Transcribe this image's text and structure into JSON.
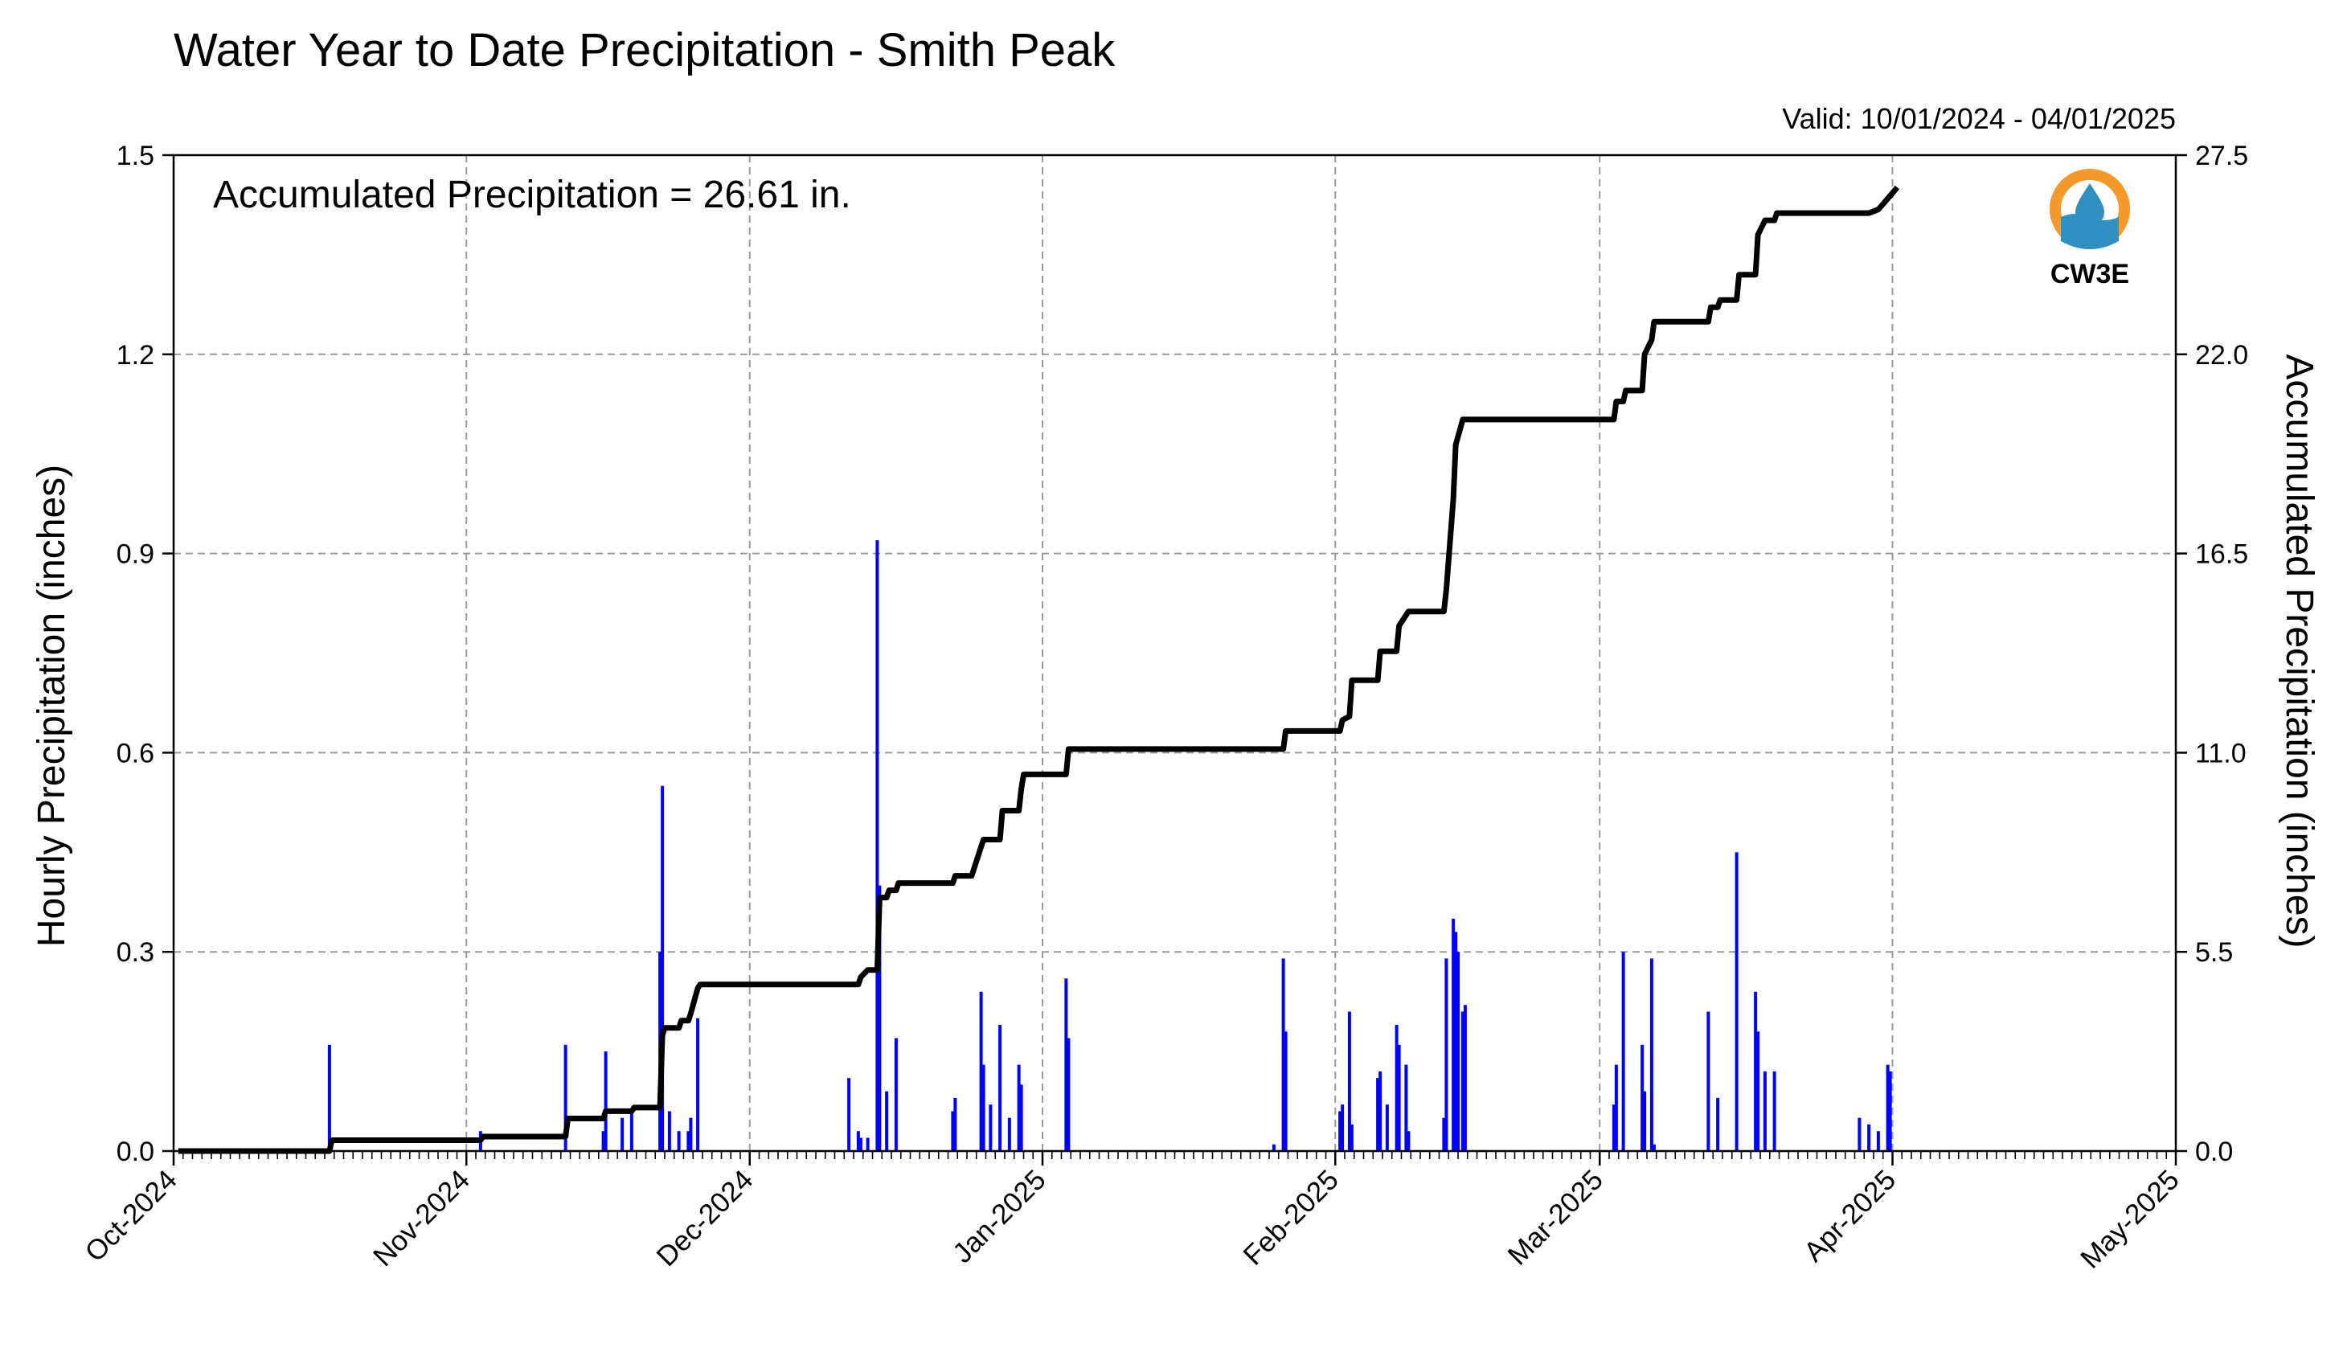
{
  "chart_data": {
    "type": "bar+line",
    "title": "Water Year to Date Precipitation - Smith Peak",
    "valid_range": "Valid: 10/01/2024 - 04/01/2025",
    "annotation": "Accumulated Precipitation = 26.61 in.",
    "logo_text": "CW3E",
    "ylabel_left": "Hourly Precipitation (inches)",
    "ylabel_right": "Accumulated Precipitation (inches)",
    "ylim_left": [
      0,
      1.5
    ],
    "ylim_right": [
      0,
      27.5
    ],
    "yticks_left": [
      "0.0",
      "0.3",
      "0.6",
      "0.9",
      "1.2",
      "1.5"
    ],
    "yticks_right": [
      "0.0",
      "5.5",
      "11.0",
      "16.5",
      "22.0",
      "27.5"
    ],
    "xlim": [
      "2024-10-01",
      "2025-05-01"
    ],
    "xticks": [
      "Oct-2024",
      "Nov-2024",
      "Dec-2024",
      "Jan-2025",
      "Feb-2025",
      "Mar-2025",
      "Apr-2025",
      "May-2025"
    ],
    "grid": true,
    "colors": {
      "hourly": "#0000ff",
      "accumulated": "#000000",
      "logo_orange": "#f39a2a",
      "logo_blue": "#2f8fc0"
    },
    "series": [
      {
        "name": "Hourly Precipitation",
        "axis": "left",
        "style": "bar",
        "points": [
          [
            "2024-10-17",
            0.16
          ],
          [
            "2024-11-02",
            0.03
          ],
          [
            "2024-11-11",
            0.16
          ],
          [
            "2024-11-15",
            0.03
          ],
          [
            "2024-11-15",
            0.15
          ],
          [
            "2024-11-17",
            0.05
          ],
          [
            "2024-11-18",
            0.06
          ],
          [
            "2024-11-21",
            0.3
          ],
          [
            "2024-11-21",
            0.55
          ],
          [
            "2024-11-22",
            0.06
          ],
          [
            "2024-11-23",
            0.03
          ],
          [
            "2024-11-24",
            0.03
          ],
          [
            "2024-11-24",
            0.05
          ],
          [
            "2024-11-25",
            0.2
          ],
          [
            "2024-12-11",
            0.11
          ],
          [
            "2024-12-12",
            0.03
          ],
          [
            "2024-12-12",
            0.02
          ],
          [
            "2024-12-13",
            0.02
          ],
          [
            "2024-12-14",
            0.92
          ],
          [
            "2024-12-14",
            0.4
          ],
          [
            "2024-12-15",
            0.09
          ],
          [
            "2024-12-16",
            0.17
          ],
          [
            "2024-12-22",
            0.06
          ],
          [
            "2024-12-22",
            0.08
          ],
          [
            "2024-12-25",
            0.24
          ],
          [
            "2024-12-25",
            0.13
          ],
          [
            "2024-12-26",
            0.07
          ],
          [
            "2024-12-27",
            0.19
          ],
          [
            "2024-12-28",
            0.05
          ],
          [
            "2024-12-29",
            0.13
          ],
          [
            "2024-12-29",
            0.1
          ],
          [
            "2025-01-03",
            0.26
          ],
          [
            "2025-01-03",
            0.17
          ],
          [
            "2025-01-25",
            0.01
          ],
          [
            "2025-01-26",
            0.29
          ],
          [
            "2025-01-26",
            0.18
          ],
          [
            "2025-02-01",
            0.06
          ],
          [
            "2025-02-01",
            0.07
          ],
          [
            "2025-02-02",
            0.21
          ],
          [
            "2025-02-02",
            0.04
          ],
          [
            "2025-02-05",
            0.11
          ],
          [
            "2025-02-05",
            0.12
          ],
          [
            "2025-02-06",
            0.07
          ],
          [
            "2025-02-07",
            0.19
          ],
          [
            "2025-02-07",
            0.16
          ],
          [
            "2025-02-08",
            0.13
          ],
          [
            "2025-02-08",
            0.03
          ],
          [
            "2025-02-12",
            0.05
          ],
          [
            "2025-02-12",
            0.29
          ],
          [
            "2025-02-13",
            0.35
          ],
          [
            "2025-02-13",
            0.33
          ],
          [
            "2025-02-13",
            0.3
          ],
          [
            "2025-02-14",
            0.21
          ],
          [
            "2025-02-14",
            0.22
          ],
          [
            "2025-03-02",
            0.07
          ],
          [
            "2025-03-02",
            0.13
          ],
          [
            "2025-03-03",
            0.3
          ],
          [
            "2025-03-05",
            0.16
          ],
          [
            "2025-03-05",
            0.09
          ],
          [
            "2025-03-06",
            0.29
          ],
          [
            "2025-03-06",
            0.01
          ],
          [
            "2025-03-12",
            0.21
          ],
          [
            "2025-03-13",
            0.08
          ],
          [
            "2025-03-15",
            0.45
          ],
          [
            "2025-03-17",
            0.24
          ],
          [
            "2025-03-17",
            0.18
          ],
          [
            "2025-03-18",
            0.12
          ],
          [
            "2025-03-19",
            0.12
          ],
          [
            "2025-03-28",
            0.05
          ],
          [
            "2025-03-29",
            0.04
          ],
          [
            "2025-03-30",
            0.03
          ],
          [
            "2025-03-31",
            0.13
          ],
          [
            "2025-03-31",
            0.12
          ]
        ]
      },
      {
        "name": "Accumulated Precipitation",
        "axis": "right",
        "style": "step",
        "points": [
          [
            "2024-10-01",
            0.0
          ],
          [
            "2024-10-17",
            0.0
          ],
          [
            "2024-10-17",
            0.3
          ],
          [
            "2024-11-02",
            0.3
          ],
          [
            "2024-11-02",
            0.4
          ],
          [
            "2024-11-11",
            0.4
          ],
          [
            "2024-11-11",
            0.9
          ],
          [
            "2024-11-15",
            0.9
          ],
          [
            "2024-11-15",
            1.1
          ],
          [
            "2024-11-18",
            1.1
          ],
          [
            "2024-11-18",
            1.2
          ],
          [
            "2024-11-21",
            1.2
          ],
          [
            "2024-11-21",
            3.2
          ],
          [
            "2024-11-21",
            3.4
          ],
          [
            "2024-11-23",
            3.4
          ],
          [
            "2024-11-23",
            3.6
          ],
          [
            "2024-11-24",
            3.6
          ],
          [
            "2024-11-24",
            3.8
          ],
          [
            "2024-11-25",
            4.5
          ],
          [
            "2024-11-25",
            4.6
          ],
          [
            "2024-12-12",
            4.6
          ],
          [
            "2024-12-12",
            4.8
          ],
          [
            "2024-12-13",
            5.0
          ],
          [
            "2024-12-14",
            5.0
          ],
          [
            "2024-12-14",
            7.0
          ],
          [
            "2024-12-14",
            7.0
          ],
          [
            "2024-12-15",
            7.0
          ],
          [
            "2024-12-15",
            7.2
          ],
          [
            "2024-12-16",
            7.2
          ],
          [
            "2024-12-16",
            7.4
          ],
          [
            "2024-12-22",
            7.4
          ],
          [
            "2024-12-22",
            7.6
          ],
          [
            "2024-12-24",
            7.6
          ],
          [
            "2024-12-25",
            8.4
          ],
          [
            "2024-12-25",
            8.6
          ],
          [
            "2024-12-27",
            8.6
          ],
          [
            "2024-12-27",
            9.4
          ],
          [
            "2024-12-29",
            9.4
          ],
          [
            "2024-12-29",
            10.0
          ],
          [
            "2024-12-29",
            10.4
          ],
          [
            "2025-01-03",
            10.4
          ],
          [
            "2025-01-03",
            11.1
          ],
          [
            "2025-01-26",
            11.1
          ],
          [
            "2025-01-26",
            11.6
          ],
          [
            "2025-02-01",
            11.6
          ],
          [
            "2025-02-01",
            11.9
          ],
          [
            "2025-02-02",
            12.0
          ],
          [
            "2025-02-02",
            13.0
          ],
          [
            "2025-02-05",
            13.0
          ],
          [
            "2025-02-05",
            13.8
          ],
          [
            "2025-02-07",
            13.8
          ],
          [
            "2025-02-07",
            14.5
          ],
          [
            "2025-02-08",
            14.8
          ],
          [
            "2025-02-08",
            14.9
          ],
          [
            "2025-02-12",
            14.9
          ],
          [
            "2025-02-12",
            15.5
          ],
          [
            "2025-02-13",
            18.0
          ],
          [
            "2025-02-13",
            19.5
          ],
          [
            "2025-02-14",
            20.2
          ],
          [
            "2025-03-02",
            20.2
          ],
          [
            "2025-03-02",
            20.7
          ],
          [
            "2025-03-03",
            20.7
          ],
          [
            "2025-03-03",
            21.0
          ],
          [
            "2025-03-05",
            21.0
          ],
          [
            "2025-03-05",
            22.0
          ],
          [
            "2025-03-06",
            22.4
          ],
          [
            "2025-03-06",
            22.9
          ],
          [
            "2025-03-12",
            22.9
          ],
          [
            "2025-03-12",
            23.3
          ],
          [
            "2025-03-13",
            23.3
          ],
          [
            "2025-03-13",
            23.5
          ],
          [
            "2025-03-15",
            23.5
          ],
          [
            "2025-03-15",
            24.2
          ],
          [
            "2025-03-17",
            24.2
          ],
          [
            "2025-03-17",
            25.3
          ],
          [
            "2025-03-18",
            25.7
          ],
          [
            "2025-03-19",
            25.7
          ],
          [
            "2025-03-19",
            25.9
          ],
          [
            "2025-03-29",
            25.9
          ],
          [
            "2025-03-30",
            26.0
          ],
          [
            "2025-03-31",
            26.3
          ],
          [
            "2025-04-01",
            26.61
          ]
        ]
      }
    ]
  }
}
